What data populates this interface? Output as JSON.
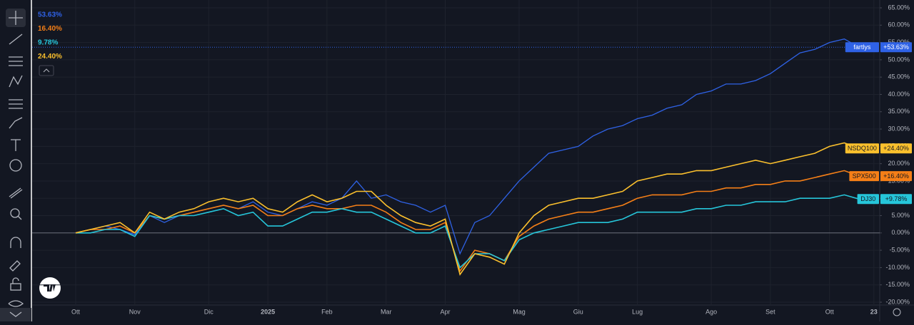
{
  "chart_data": {
    "type": "line",
    "categories": [
      "Ott",
      null,
      null,
      null,
      "Nov",
      null,
      null,
      null,
      null,
      "Dic",
      null,
      null,
      null,
      "2025",
      null,
      null,
      null,
      "Feb",
      null,
      null,
      null,
      "Mar",
      null,
      null,
      null,
      "Apr",
      null,
      null,
      null,
      null,
      "Mag",
      null,
      null,
      null,
      "Giu",
      null,
      null,
      null,
      "Lug",
      null,
      null,
      null,
      null,
      "Ago",
      null,
      null,
      null,
      "Set",
      null,
      null,
      null,
      "Ott",
      null,
      null,
      "23"
    ],
    "series": [
      {
        "name": "fartlys",
        "color": "#2f62e6",
        "legend_label": "53.63%",
        "badge_label": "+53.63%",
        "values": [
          0,
          1,
          2,
          1,
          -0.5,
          5,
          3,
          5,
          6,
          7,
          8,
          7,
          9,
          6,
          5,
          7,
          9,
          8,
          10,
          15,
          10,
          11,
          9,
          8,
          6,
          8,
          -6,
          3,
          5,
          10,
          15,
          19,
          23,
          24,
          25,
          28,
          30,
          31,
          33,
          34,
          36,
          37,
          40,
          41,
          43,
          43,
          44,
          46,
          49,
          52,
          53,
          55,
          56,
          53.63,
          null
        ]
      },
      {
        "name": "SPX500",
        "color": "#f57f17",
        "legend_label": "16.40%",
        "badge_label": "+16.40%",
        "values": [
          0,
          1,
          1,
          2,
          0,
          5,
          4,
          5,
          6,
          7,
          8,
          7,
          8,
          5,
          5,
          7,
          8,
          7,
          7,
          8,
          8,
          6,
          3,
          1,
          1,
          3,
          -11,
          -5,
          -6,
          -8,
          -1,
          2,
          4,
          5,
          6,
          6,
          7,
          8,
          10,
          11,
          11,
          11,
          12,
          12,
          13,
          13,
          14,
          14,
          15,
          15,
          16,
          17,
          18,
          16.4,
          null
        ]
      },
      {
        "name": "DJ30",
        "color": "#26c6da",
        "legend_label": "9.78%",
        "badge_label": "+9.78%",
        "values": [
          0,
          0,
          1,
          1,
          -1,
          5,
          4,
          5,
          5,
          6,
          7,
          5,
          6,
          2,
          2,
          4,
          6,
          6,
          7,
          6,
          6,
          4,
          2,
          0,
          0,
          2,
          -10,
          -6,
          -6,
          -8,
          -2,
          0,
          1,
          2,
          3,
          3,
          3,
          4,
          6,
          6,
          6,
          6,
          7,
          7,
          8,
          8,
          9,
          9,
          9,
          10,
          10,
          10,
          11,
          9.78,
          null
        ]
      },
      {
        "name": "NSDQ100",
        "color": "#fbc02d",
        "legend_label": "24.40%",
        "badge_label": "+24.40%",
        "values": [
          0,
          1,
          2,
          3,
          0,
          6,
          4,
          6,
          7,
          9,
          10,
          9,
          10,
          7,
          6,
          9,
          11,
          9,
          10,
          12,
          12,
          8,
          5,
          3,
          2,
          4,
          -12,
          -6,
          -7,
          -9,
          0,
          5,
          8,
          9,
          10,
          10,
          11,
          12,
          15,
          16,
          17,
          17,
          18,
          18,
          19,
          20,
          21,
          20,
          21,
          22,
          23,
          25,
          26,
          24.4,
          null
        ]
      }
    ],
    "ylim": [
      -20,
      65
    ],
    "yticks": [
      {
        "value": -20,
        "label": "-20.00%"
      },
      {
        "value": -15,
        "label": "-15.00%"
      },
      {
        "value": -10,
        "label": "-10.00%"
      },
      {
        "value": -5,
        "label": "-5.00%"
      },
      {
        "value": 0,
        "label": "0.00%"
      },
      {
        "value": 5,
        "label": "5.00%"
      },
      {
        "value": 10,
        "label": "10.00%"
      },
      {
        "value": 15,
        "label": "15.00%"
      },
      {
        "value": 20,
        "label": "20.00%"
      },
      {
        "value": 25,
        "label": "25.00%"
      },
      {
        "value": 30,
        "label": "30.00%"
      },
      {
        "value": 35,
        "label": "35.00%"
      },
      {
        "value": 40,
        "label": "40.00%"
      },
      {
        "value": 45,
        "label": "45.00%"
      },
      {
        "value": 50,
        "label": "50.00%"
      },
      {
        "value": 55,
        "label": "55.00%"
      },
      {
        "value": 60,
        "label": "60.00%"
      },
      {
        "value": 65,
        "label": "65.00%"
      }
    ],
    "grid": true
  }
}
